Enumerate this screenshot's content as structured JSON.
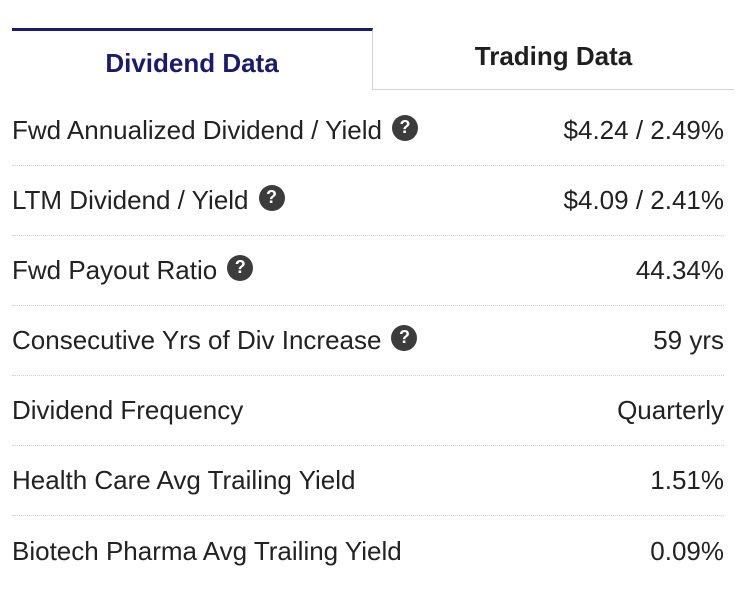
{
  "tabs": [
    {
      "label": "Dividend Data",
      "active": true
    },
    {
      "label": "Trading Data",
      "active": false
    }
  ],
  "help_icon_glyph": "?",
  "rows": [
    {
      "label": "Fwd Annualized Dividend / Yield",
      "value": "$4.24 / 2.49%",
      "has_help": true
    },
    {
      "label": "LTM Dividend / Yield",
      "value": "$4.09 / 2.41%",
      "has_help": true
    },
    {
      "label": "Fwd Payout Ratio",
      "value": "44.34%",
      "has_help": true
    },
    {
      "label": "Consecutive Yrs of Div Increase",
      "value": "59 yrs",
      "has_help": true
    },
    {
      "label": "Dividend Frequency",
      "value": "Quarterly",
      "has_help": false
    },
    {
      "label": "Health Care Avg Trailing Yield",
      "value": "1.51%",
      "has_help": false
    },
    {
      "label": "Biotech Pharma Avg Trailing Yield",
      "value": "0.09%",
      "has_help": false
    }
  ],
  "colors": {
    "active_tab": "#1a1a6e",
    "text": "#222222",
    "help_icon_bg": "#3c3c3c",
    "divider": "#cfcfcf"
  }
}
